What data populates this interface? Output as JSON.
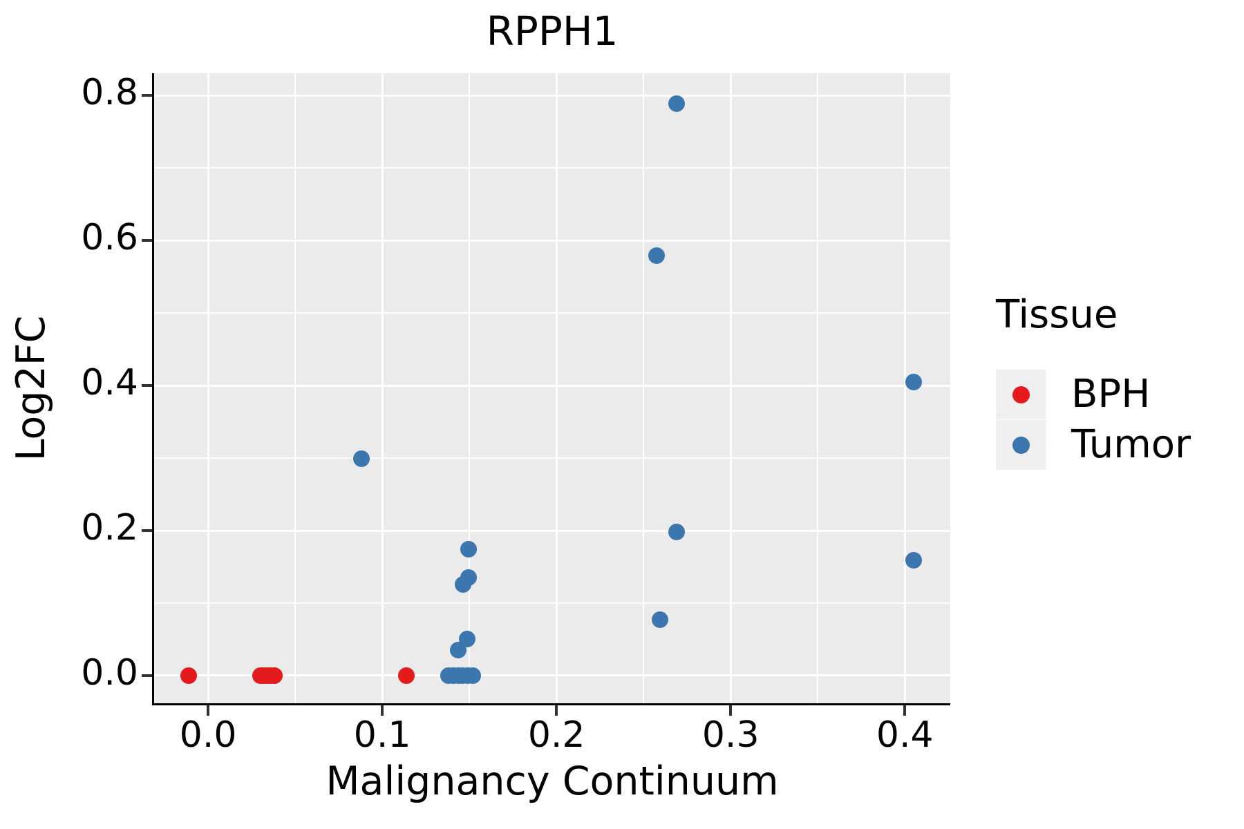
{
  "chart_data": {
    "type": "scatter",
    "title": "RPPH1",
    "xlabel": "Malignancy Continuum",
    "ylabel": "Log2FC",
    "xlim": [
      -0.031,
      0.4261
    ],
    "ylim": [
      -0.0381,
      0.8305
    ],
    "grid": true,
    "x_ticks": {
      "values": [
        0.0,
        0.1,
        0.2,
        0.3,
        0.4
      ],
      "labels": [
        "0.0",
        "0.1",
        "0.2",
        "0.3",
        "0.4"
      ]
    },
    "x_minor": [
      0.05,
      0.15,
      0.25,
      0.35
    ],
    "y_ticks": {
      "values": [
        0.0,
        0.2,
        0.4,
        0.6,
        0.8
      ],
      "labels": [
        "0.0",
        "0.2",
        "0.4",
        "0.6",
        "0.8"
      ]
    },
    "y_minor": [
      0.1,
      0.3,
      0.5,
      0.7
    ],
    "marker_diameter_px": 24,
    "panel_background": "#EBEBEB",
    "grid_color": "#FFFFFF",
    "series": [
      {
        "name": "BPH",
        "color": "#E41A1C",
        "points": [
          [
            -0.011,
            0.0
          ],
          [
            0.03,
            0.0
          ],
          [
            0.032,
            0.0
          ],
          [
            0.034,
            0.0
          ],
          [
            0.036,
            0.0
          ],
          [
            0.038,
            0.0
          ],
          [
            0.114,
            0.0
          ]
        ]
      },
      {
        "name": "Tumor",
        "color": "#3B76AF",
        "points": [
          [
            0.088,
            0.299
          ],
          [
            0.138,
            0.0
          ],
          [
            0.141,
            0.0
          ],
          [
            0.1435,
            0.0
          ],
          [
            0.146,
            0.0
          ],
          [
            0.149,
            0.0
          ],
          [
            0.152,
            0.0
          ],
          [
            0.1434,
            0.035
          ],
          [
            0.1488,
            0.05
          ],
          [
            0.1464,
            0.126
          ],
          [
            0.1497,
            0.135
          ],
          [
            0.1495,
            0.174
          ],
          [
            0.2575,
            0.579
          ],
          [
            0.269,
            0.789
          ],
          [
            0.269,
            0.198
          ],
          [
            0.2595,
            0.077
          ],
          [
            0.405,
            0.405
          ],
          [
            0.405,
            0.159
          ]
        ]
      }
    ],
    "legend_position": "right"
  },
  "legend": {
    "title": "Tissue",
    "items": [
      {
        "label": "BPH",
        "color": "#E41A1C"
      },
      {
        "label": "Tumor",
        "color": "#3B76AF"
      }
    ]
  }
}
